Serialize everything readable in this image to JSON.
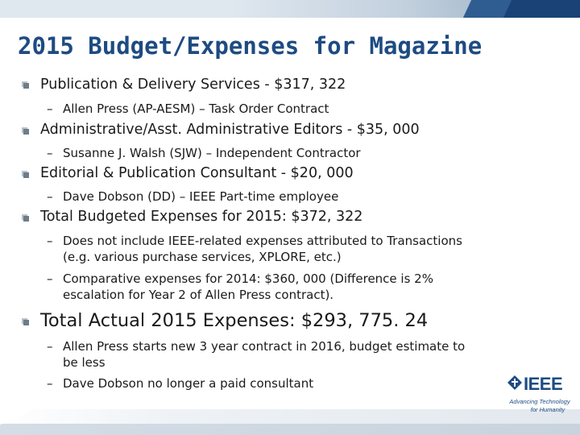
{
  "slide": {
    "title": "2015 Budget/Expenses for Magazine",
    "items": [
      {
        "text": "Publication & Delivery Services - $317, 322",
        "subitems": [
          {
            "lines": [
              "Allen Press (AP-AESM) – Task Order Contract"
            ]
          }
        ]
      },
      {
        "text": "Administrative/Asst. Administrative Editors - $35, 000",
        "subitems": [
          {
            "lines": [
              "Susanne J. Walsh (SJW) – Independent Contractor"
            ]
          }
        ]
      },
      {
        "text": "Editorial & Publication Consultant  - $20, 000",
        "subitems": [
          {
            "lines": [
              "Dave Dobson (DD) – IEEE Part-time employee"
            ]
          }
        ]
      },
      {
        "text": "Total Budgeted Expenses for 2015: $372, 322",
        "subitems": [
          {
            "lines": [
              "Does not include IEEE-related expenses attributed to Transactions",
              "(e.g. various purchase services, XPLORE, etc.)"
            ]
          },
          {
            "lines": [
              "Comparative expenses for 2014: $360, 000 (Difference is 2%",
              "escalation for Year 2 of Allen Press contract)."
            ]
          }
        ]
      },
      {
        "text": "Total Actual 2015 Expenses: $293, 775. 24",
        "subitems": [
          {
            "lines": [
              "Allen Press starts new 3 year contract in 2016, budget estimate to",
              "be less"
            ]
          },
          {
            "lines": [
              "Dave Dobson no longer a paid consultant"
            ]
          }
        ]
      }
    ],
    "dash": "–"
  },
  "logo": {
    "word": "IEEE",
    "tagline_1": "Advancing Technology",
    "tagline_2": "for Humanity"
  },
  "colors": {
    "title": "#1e4b82",
    "accent": "#1e4b82",
    "text": "#1a1a1a"
  }
}
